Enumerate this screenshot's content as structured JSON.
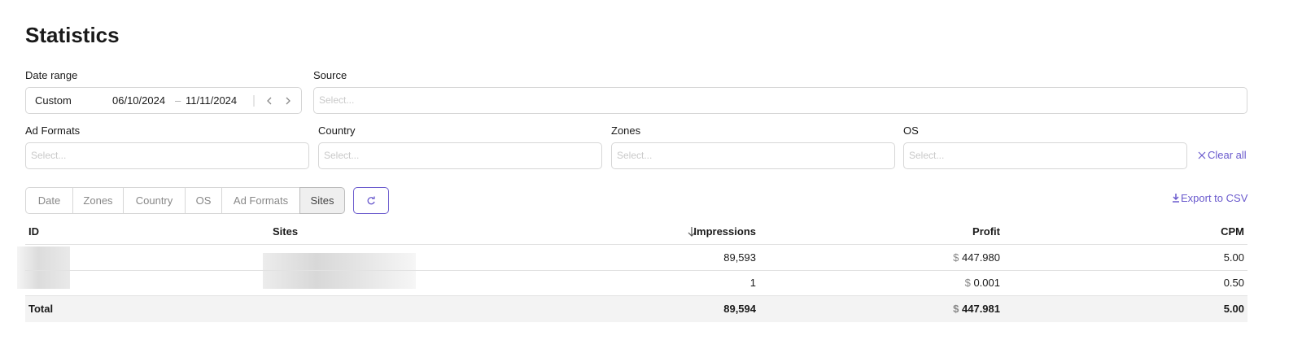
{
  "header": {
    "title": "Statistics"
  },
  "filters": {
    "date_range": {
      "label": "Date range",
      "preset": "Custom",
      "start": "06/10/2024",
      "separator": "–",
      "end": "11/11/2024"
    },
    "source": {
      "label": "Source",
      "placeholder": "Select..."
    },
    "ad_formats": {
      "label": "Ad Formats",
      "placeholder": "Select..."
    },
    "country": {
      "label": "Country",
      "placeholder": "Select..."
    },
    "zones": {
      "label": "Zones",
      "placeholder": "Select..."
    },
    "os": {
      "label": "OS",
      "placeholder": "Select..."
    },
    "clear_all": "Clear all"
  },
  "tabs": [
    "Date",
    "Zones",
    "Country",
    "OS",
    "Ad Formats",
    "Sites"
  ],
  "export": "Export to CSV",
  "table": {
    "headers": [
      "ID",
      "Sites",
      "Impressions",
      "Profit",
      "CPM"
    ],
    "rows": [
      {
        "impressions": "89,593",
        "currency": "$",
        "profit": "447.980",
        "cpm": "5.00"
      },
      {
        "impressions": "1",
        "currency": "$",
        "profit": "0.001",
        "cpm": "0.50"
      }
    ],
    "total": {
      "label": "Total",
      "impressions": "89,594",
      "currency": "$",
      "profit": "447.981",
      "cpm": "5.00"
    }
  }
}
